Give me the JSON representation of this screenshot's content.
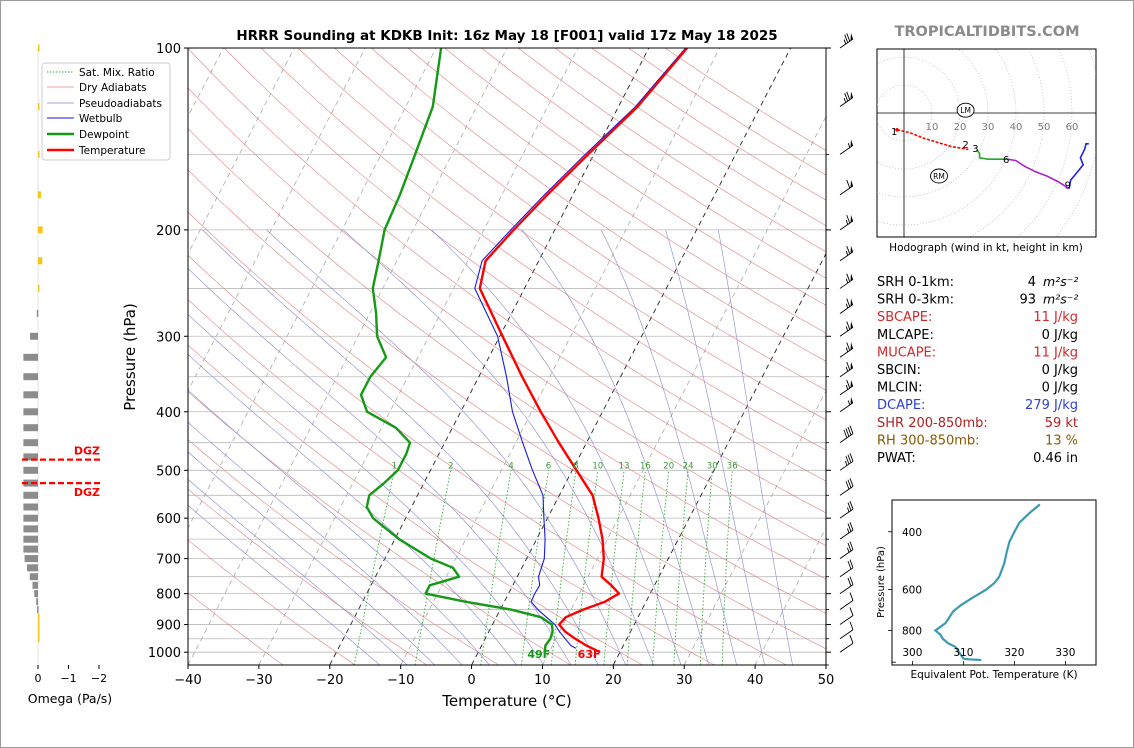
{
  "brand": "TROPICALTIDBITS.COM",
  "chart_data": [
    {
      "type": "line",
      "name": "skew-t",
      "title": "HRRR Sounding at KDKB Init: 16z May 18 [F001] valid 17z May 18 2025",
      "xlabel": "Temperature (°C)",
      "ylabel": "Pressure (hPa)",
      "xlim": [
        -40,
        50
      ],
      "ylim": [
        1050,
        100
      ],
      "x_ticks": [
        -40,
        -30,
        -20,
        -10,
        0,
        10,
        20,
        30,
        40,
        50
      ],
      "x_tick_labels": [
        "−40",
        "−30",
        "−20",
        "−10",
        "0",
        "10",
        "20",
        "30",
        "40",
        "50"
      ],
      "y_ticks": [
        100,
        200,
        300,
        400,
        500,
        600,
        700,
        800,
        900,
        1000
      ],
      "y_scale": "log",
      "skew": true,
      "grid": true,
      "legend": "top-left",
      "legend_entries": [
        "Sat. Mix. Ratio",
        "Dry Adiabats",
        "Pseudoadiabats",
        "Wetbulb",
        "Dewpoint",
        "Temperature"
      ],
      "mixing_ratio_labels": [
        "1",
        "2",
        "4",
        "6",
        "8",
        "10",
        "13",
        "16",
        "20",
        "24",
        "30",
        "36"
      ],
      "surface_dewpoint_label": "49F",
      "surface_temperature_label": "63F",
      "temperature": [
        [
          1000,
          17.2
        ],
        [
          975,
          14.8
        ],
        [
          950,
          12.7
        ],
        [
          925,
          10.8
        ],
        [
          900,
          9.4
        ],
        [
          875,
          9.8
        ],
        [
          850,
          11.7
        ],
        [
          825,
          14.2
        ],
        [
          800,
          15.6
        ],
        [
          775,
          13.9
        ],
        [
          750,
          11.9
        ],
        [
          700,
          10.9
        ],
        [
          650,
          9.3
        ],
        [
          600,
          7.2
        ],
        [
          550,
          4.7
        ],
        [
          500,
          0.6
        ],
        [
          450,
          -3.9
        ],
        [
          400,
          -8.7
        ],
        [
          350,
          -13.9
        ],
        [
          300,
          -19.6
        ],
        [
          250,
          -26.3
        ],
        [
          225,
          -27.5
        ],
        [
          200,
          -25.8
        ],
        [
          175,
          -23.6
        ],
        [
          150,
          -20.8
        ],
        [
          125,
          -17.3
        ],
        [
          100,
          -14.6
        ]
      ],
      "dewpoint": [
        [
          1000,
          9.4
        ],
        [
          975,
          9.0
        ],
        [
          950,
          9.2
        ],
        [
          925,
          9.0
        ],
        [
          900,
          8.4
        ],
        [
          875,
          6.3
        ],
        [
          850,
          1.5
        ],
        [
          825,
          -5.5
        ],
        [
          800,
          -11.7
        ],
        [
          775,
          -11.7
        ],
        [
          750,
          -8.2
        ],
        [
          725,
          -9.7
        ],
        [
          700,
          -13.5
        ],
        [
          650,
          -19.4
        ],
        [
          600,
          -24.6
        ],
        [
          575,
          -26.3
        ],
        [
          550,
          -26.8
        ],
        [
          525,
          -25.6
        ],
        [
          500,
          -24.6
        ],
        [
          470,
          -24.6
        ],
        [
          450,
          -24.9
        ],
        [
          425,
          -28.0
        ],
        [
          400,
          -33.2
        ],
        [
          375,
          -35.3
        ],
        [
          350,
          -35.3
        ],
        [
          325,
          -34.5
        ],
        [
          300,
          -37.3
        ],
        [
          275,
          -39.1
        ],
        [
          250,
          -41.4
        ],
        [
          225,
          -42.6
        ],
        [
          200,
          -44.0
        ],
        [
          175,
          -44.4
        ],
        [
          150,
          -45.2
        ],
        [
          125,
          -46.2
        ],
        [
          100,
          -49.3
        ]
      ],
      "wetbulb": [
        [
          985,
          13.5
        ],
        [
          975,
          12.6
        ],
        [
          950,
          11.3
        ],
        [
          925,
          10.0
        ],
        [
          900,
          8.8
        ],
        [
          850,
          5.3
        ],
        [
          825,
          3.8
        ],
        [
          800,
          3.7
        ],
        [
          775,
          3.8
        ],
        [
          750,
          3.0
        ],
        [
          700,
          2.5
        ],
        [
          650,
          1.2
        ],
        [
          600,
          -0.5
        ],
        [
          550,
          -2.3
        ],
        [
          500,
          -5.6
        ],
        [
          450,
          -9.0
        ],
        [
          400,
          -12.7
        ],
        [
          350,
          -16.1
        ],
        [
          300,
          -20.3
        ],
        [
          250,
          -27.0
        ],
        [
          225,
          -28.0
        ],
        [
          200,
          -26.2
        ],
        [
          175,
          -24.0
        ],
        [
          150,
          -21.2
        ],
        [
          125,
          -17.6
        ],
        [
          100,
          -14.8
        ]
      ]
    },
    {
      "type": "bar",
      "name": "omega",
      "xlabel": "Omega (Pa/s)",
      "x_ticks": [
        0,
        -1,
        -2
      ],
      "x_tick_labels": [
        "0",
        "−1",
        "−2"
      ],
      "xlim": [
        0.2,
        -2.2
      ],
      "dgz_label": "DGZ",
      "dgz_levels": [
        480,
        525
      ],
      "bars": [
        [
          100,
          -0.03,
          "#f5c518"
        ],
        [
          125,
          -0.04,
          "#f5c518"
        ],
        [
          150,
          -0.04,
          "#f5c518"
        ],
        [
          175,
          -0.1,
          "#f5c518"
        ],
        [
          200,
          -0.15,
          "#f5c518"
        ],
        [
          225,
          -0.14,
          "#f5c518"
        ],
        [
          250,
          -0.05,
          "#f5c518"
        ],
        [
          275,
          0.04,
          "#8c8c8c"
        ],
        [
          300,
          0.26,
          "#8c8c8c"
        ],
        [
          325,
          0.48,
          "#8c8c8c"
        ],
        [
          350,
          0.48,
          "#8c8c8c"
        ],
        [
          375,
          0.48,
          "#8c8c8c"
        ],
        [
          400,
          0.48,
          "#8c8c8c"
        ],
        [
          425,
          0.48,
          "#8c8c8c"
        ],
        [
          450,
          0.48,
          "#8c8c8c"
        ],
        [
          475,
          0.48,
          "#8c8c8c"
        ],
        [
          500,
          0.48,
          "#8c8c8c"
        ],
        [
          525,
          0.48,
          "#8c8c8c"
        ],
        [
          550,
          0.48,
          "#8c8c8c"
        ],
        [
          575,
          0.48,
          "#8c8c8c"
        ],
        [
          600,
          0.48,
          "#8c8c8c"
        ],
        [
          625,
          0.48,
          "#8c8c8c"
        ],
        [
          650,
          0.48,
          "#8c8c8c"
        ],
        [
          675,
          0.48,
          "#8c8c8c"
        ],
        [
          700,
          0.44,
          "#8c8c8c"
        ],
        [
          725,
          0.36,
          "#8c8c8c"
        ],
        [
          750,
          0.27,
          "#8c8c8c"
        ],
        [
          775,
          0.18,
          "#8c8c8c"
        ],
        [
          800,
          0.12,
          "#8c8c8c"
        ],
        [
          825,
          0.06,
          "#8c8c8c"
        ],
        [
          850,
          0.03,
          "#8c8c8c"
        ],
        [
          875,
          -0.02,
          "#f5c518"
        ],
        [
          900,
          -0.03,
          "#f5c518"
        ],
        [
          925,
          -0.02,
          "#f5c518"
        ],
        [
          950,
          -0.01,
          "#f5c518"
        ]
      ]
    },
    {
      "type": "line",
      "name": "hodograph",
      "xlabel": "Hodograph (wind in kt, height in km)",
      "ring_labels": [
        "10",
        "20",
        "30",
        "40",
        "50",
        "60"
      ],
      "ring_step_kt": 10,
      "height_labels": [
        [
          "1",
          -3.5,
          -6.5
        ],
        [
          "2",
          22,
          -11
        ],
        [
          "3",
          25.5,
          -12.5
        ],
        [
          "6",
          36.5,
          -16.5
        ],
        [
          "9",
          58.5,
          -25.5
        ]
      ],
      "storm_motion": [
        {
          "label": "LM",
          "u": 22,
          "v": 1
        },
        {
          "label": "RM",
          "u": 12.5,
          "v": -22.5
        }
      ],
      "segments": [
        {
          "color": "#ff0000",
          "points": [
            [
              -2.5,
              -6
            ],
            [
              2,
              -7
            ],
            [
              7,
              -9
            ],
            [
              12,
              -10.5
            ],
            [
              17,
              -12
            ],
            [
              20,
              -12.5
            ],
            [
              23,
              -13
            ]
          ]
        },
        {
          "color": "#22aa22",
          "points": [
            [
              26,
              -13
            ],
            [
              27,
              -14.5
            ],
            [
              27,
              -16
            ],
            [
              30,
              -16.5
            ],
            [
              34,
              -16.5
            ],
            [
              37,
              -16.5
            ]
          ]
        },
        {
          "color": "#aa22cc",
          "points": [
            [
              37,
              -16.5
            ],
            [
              40,
              -17
            ],
            [
              43,
              -19
            ],
            [
              47,
              -21
            ],
            [
              51,
              -22.5
            ],
            [
              55,
              -24.5
            ],
            [
              59,
              -27
            ]
          ]
        },
        {
          "color": "#2222dd",
          "points": [
            [
              59,
              -27
            ],
            [
              59.5,
              -24
            ],
            [
              62,
              -21
            ],
            [
              64,
              -18.5
            ],
            [
              63,
              -16
            ],
            [
              64.5,
              -13
            ],
            [
              65,
              -11
            ],
            [
              66,
              -11
            ]
          ]
        }
      ]
    },
    {
      "type": "line",
      "name": "theta-e",
      "xlabel": "Equivalent Pot. Temperature (K)",
      "ylabel": "Pressure (hPa)",
      "x_ticks": [
        300,
        310,
        320,
        330
      ],
      "y_ticks": [
        400,
        600,
        800
      ],
      "xlim": [
        296,
        336
      ],
      "ylim": [
        1020,
        320
      ],
      "color": "#3a9aaf",
      "points": [
        [
          985,
          313.5
        ],
        [
          980,
          311
        ],
        [
          975,
          310
        ],
        [
          950,
          309.5
        ],
        [
          925,
          309
        ],
        [
          900,
          308.5
        ],
        [
          875,
          307
        ],
        [
          850,
          306
        ],
        [
          825,
          305.5
        ],
        [
          800,
          304.5
        ],
        [
          780,
          305.5
        ],
        [
          760,
          306.5
        ],
        [
          740,
          307
        ],
        [
          720,
          307.5
        ],
        [
          700,
          308
        ],
        [
          670,
          309.5
        ],
        [
          640,
          311.5
        ],
        [
          620,
          313
        ],
        [
          600,
          314.5
        ],
        [
          575,
          316
        ],
        [
          550,
          317
        ],
        [
          500,
          318
        ],
        [
          460,
          318.5
        ],
        [
          430,
          319
        ],
        [
          400,
          320
        ],
        [
          375,
          321
        ],
        [
          350,
          323
        ],
        [
          330,
          325
        ]
      ]
    }
  ],
  "params": [
    {
      "label": "SRH 0-1km:",
      "value": "4",
      "unit": "m²s⁻²",
      "color": "#000000"
    },
    {
      "label": "SRH 0-3km:",
      "value": "93",
      "unit": "m²s⁻²",
      "color": "#000000"
    },
    {
      "label": "SBCAPE:",
      "value": "11 J/kg",
      "unit": "",
      "color": "#d62728"
    },
    {
      "label": "MLCAPE:",
      "value": "0 J/kg",
      "unit": "",
      "color": "#000000"
    },
    {
      "label": "MUCAPE:",
      "value": "11 J/kg",
      "unit": "",
      "color": "#d62728"
    },
    {
      "label": "SBCIN:",
      "value": "0 J/kg",
      "unit": "",
      "color": "#000000"
    },
    {
      "label": "MLCIN:",
      "value": "0 J/kg",
      "unit": "",
      "color": "#000000"
    },
    {
      "label": "DCAPE:",
      "value": "279 J/kg",
      "unit": "",
      "color": "#2b3fd1"
    },
    {
      "label": "SHR 200-850mb:",
      "value": "59 kt",
      "unit": "",
      "color": "#b22222"
    },
    {
      "label": "RH 300-850mb:",
      "value": "13 %",
      "unit": "",
      "color": "#8b5a00"
    },
    {
      "label": "PWAT:",
      "value": "0.46 in",
      "unit": "",
      "color": "#000000"
    }
  ],
  "colors": {
    "temperature": "#ff0000",
    "dewpoint": "#159a15",
    "wetbulb": "#1a1adc",
    "dry_adiabat": "#e08080",
    "pseudoadiabat": "#8888cc",
    "mixing_ratio": "#33aa33",
    "isotherm": "#888888"
  },
  "barbs": [
    [
      100,
      5,
      75
    ],
    [
      125,
      5,
      75
    ],
    [
      150,
      5,
      55
    ],
    [
      175,
      5,
      60
    ],
    [
      200,
      5,
      65
    ],
    [
      225,
      5,
      65
    ],
    [
      250,
      5,
      65
    ],
    [
      275,
      5,
      65
    ],
    [
      300,
      5,
      65
    ],
    [
      325,
      5,
      65
    ],
    [
      350,
      5,
      65
    ],
    [
      375,
      5,
      65
    ],
    [
      400,
      5,
      55
    ],
    [
      450,
      5,
      40
    ],
    [
      500,
      5,
      35
    ],
    [
      550,
      5,
      30
    ],
    [
      600,
      5,
      25
    ],
    [
      650,
      5,
      25
    ],
    [
      700,
      5,
      25
    ],
    [
      750,
      5,
      20
    ],
    [
      800,
      5,
      20
    ],
    [
      850,
      5,
      10
    ],
    [
      900,
      5,
      10
    ],
    [
      950,
      5,
      10
    ],
    [
      1000,
      5,
      10
    ]
  ]
}
